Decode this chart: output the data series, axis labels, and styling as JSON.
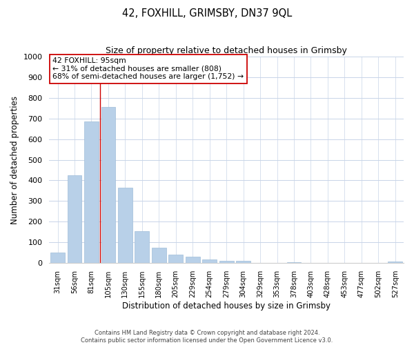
{
  "title": "42, FOXHILL, GRIMSBY, DN37 9QL",
  "subtitle": "Size of property relative to detached houses in Grimsby",
  "xlabel": "Distribution of detached houses by size in Grimsby",
  "ylabel": "Number of detached properties",
  "bar_labels": [
    "31sqm",
    "56sqm",
    "81sqm",
    "105sqm",
    "130sqm",
    "155sqm",
    "180sqm",
    "205sqm",
    "229sqm",
    "254sqm",
    "279sqm",
    "304sqm",
    "329sqm",
    "353sqm",
    "378sqm",
    "403sqm",
    "428sqm",
    "453sqm",
    "477sqm",
    "502sqm",
    "527sqm"
  ],
  "bar_values": [
    52,
    425,
    685,
    755,
    365,
    153,
    75,
    40,
    32,
    18,
    12,
    10,
    0,
    0,
    5,
    0,
    0,
    0,
    0,
    0,
    8
  ],
  "bar_color": "#b8d0e8",
  "bar_edge_color": "#9fbdd8",
  "vline_x_idx": 2.5,
  "vline_color": "#cc0000",
  "annotation_line1": "42 FOXHILL: 95sqm",
  "annotation_line2": "← 31% of detached houses are smaller (808)",
  "annotation_line3": "68% of semi-detached houses are larger (1,752) →",
  "ylim": [
    0,
    1000
  ],
  "yticks": [
    0,
    100,
    200,
    300,
    400,
    500,
    600,
    700,
    800,
    900,
    1000
  ],
  "footer_line1": "Contains HM Land Registry data © Crown copyright and database right 2024.",
  "footer_line2": "Contains public sector information licensed under the Open Government Licence v3.0.",
  "background_color": "#ffffff",
  "grid_color": "#c8d4e8"
}
